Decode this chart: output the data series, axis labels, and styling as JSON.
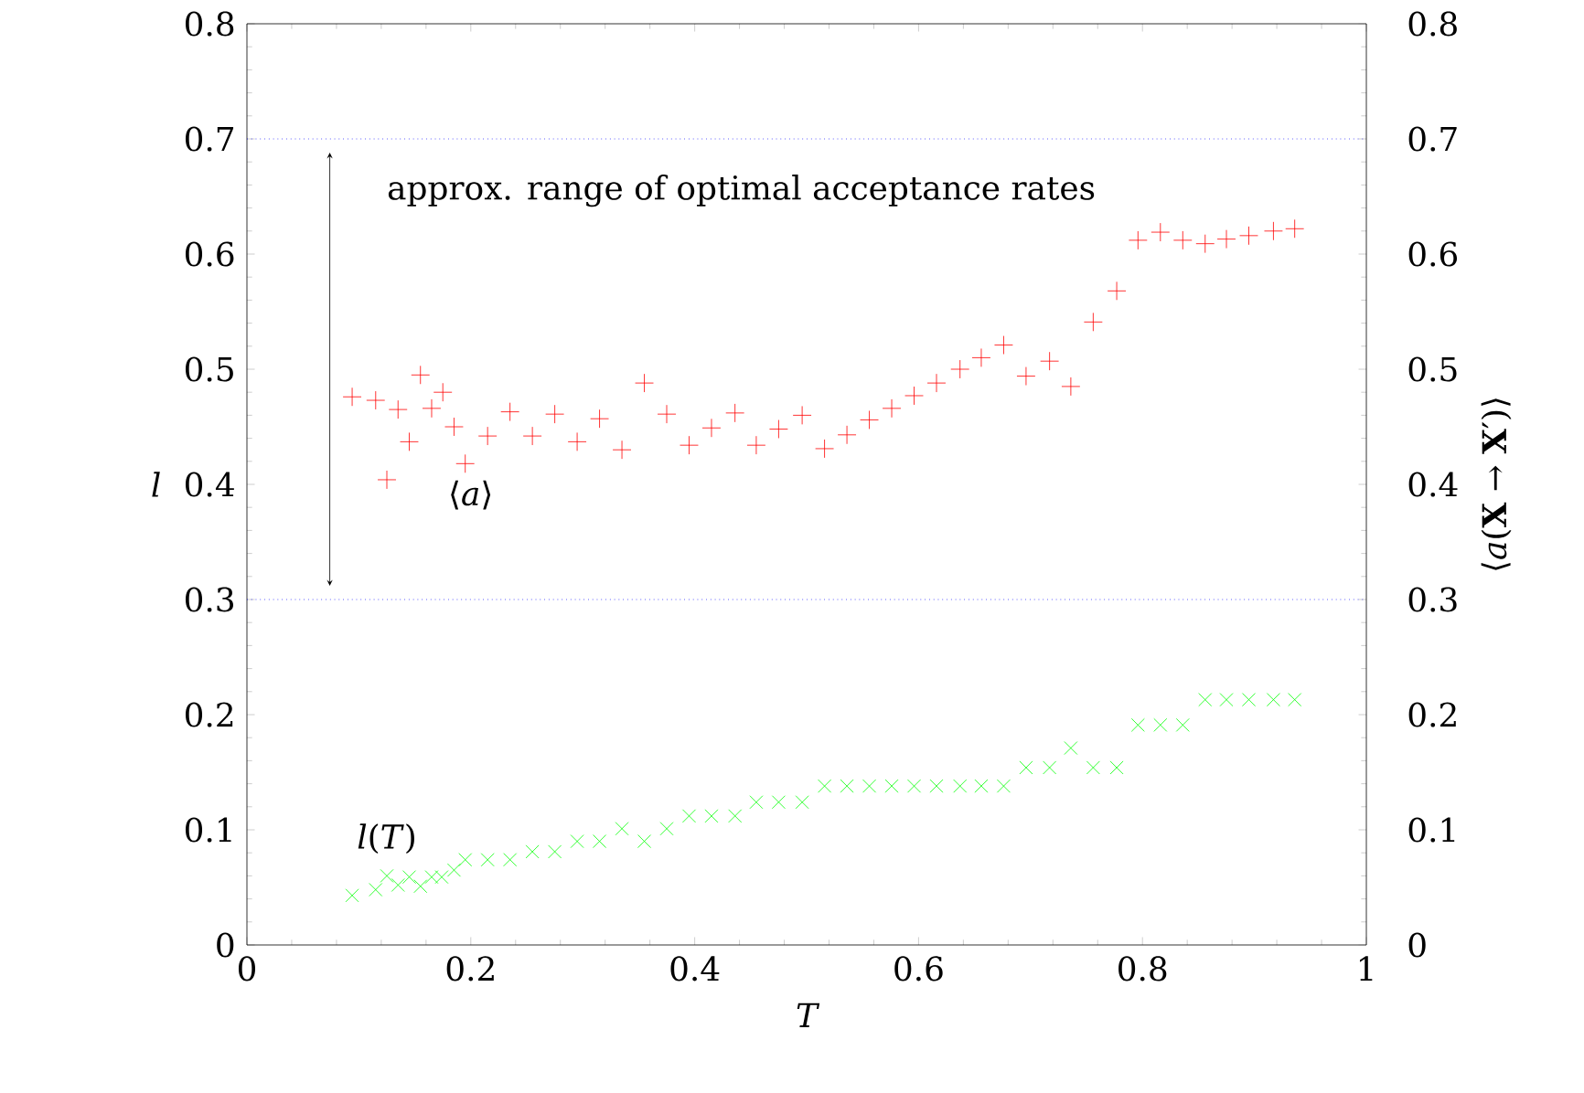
{
  "chart_data": {
    "type": "scatter",
    "xlabel": "T",
    "ylabel": "l",
    "y2label": "⟨*a*(**X** → **X**′)⟩",
    "xlim": [
      0,
      1
    ],
    "xticks": [
      0,
      0.2,
      0.4,
      0.6,
      0.8,
      1
    ],
    "ylim": [
      0,
      0.8
    ],
    "yticks": [
      0,
      0.1,
      0.2,
      0.3,
      0.4,
      0.5,
      0.6,
      0.7,
      0.8
    ],
    "y2lim": [
      0,
      0.8
    ],
    "y2ticks": [
      0,
      0.1,
      0.2,
      0.3,
      0.4,
      0.5,
      0.6,
      0.7,
      0.8
    ],
    "grid": false,
    "ref_lines": [
      {
        "axis": "y",
        "value": 0.7,
        "color": "#0000ff",
        "line_style": "dotted"
      },
      {
        "axis": "y",
        "value": 0.3,
        "color": "#0000ff",
        "line_style": "dotted"
      }
    ],
    "annotations": [
      "approx. range of optimal acceptance rates"
    ],
    "series": [
      {
        "name": "⟨*a*⟩",
        "color": "#ff0000",
        "marker": "plus",
        "axis": "y2",
        "x": [
          0.094,
          0.115,
          0.125,
          0.135,
          0.145,
          0.155,
          0.165,
          0.175,
          0.185,
          0.195,
          0.215,
          0.235,
          0.255,
          0.275,
          0.295,
          0.315,
          0.335,
          0.355,
          0.375,
          0.395,
          0.415,
          0.436,
          0.455,
          0.475,
          0.496,
          0.516,
          0.536,
          0.556,
          0.576,
          0.596,
          0.616,
          0.637,
          0.656,
          0.676,
          0.696,
          0.717,
          0.736,
          0.756,
          0.777,
          0.796,
          0.816,
          0.836,
          0.856,
          0.875,
          0.895,
          0.917,
          0.936
        ],
        "values": [
          0.476,
          0.473,
          0.404,
          0.465,
          0.437,
          0.495,
          0.466,
          0.48,
          0.45,
          0.418,
          0.442,
          0.463,
          0.442,
          0.461,
          0.437,
          0.457,
          0.43,
          0.488,
          0.461,
          0.434,
          0.449,
          0.462,
          0.434,
          0.448,
          0.46,
          0.431,
          0.443,
          0.456,
          0.466,
          0.477,
          0.488,
          0.5,
          0.51,
          0.521,
          0.494,
          0.507,
          0.485,
          0.541,
          0.568,
          0.612,
          0.619,
          0.612,
          0.609,
          0.613,
          0.616,
          0.62,
          0.622
        ]
      },
      {
        "name": "*l*(*T*)",
        "color": "#00ff00",
        "marker": "cross",
        "x": [
          0.094,
          0.115,
          0.125,
          0.135,
          0.145,
          0.155,
          0.165,
          0.174,
          0.185,
          0.195,
          0.215,
          0.235,
          0.255,
          0.275,
          0.295,
          0.315,
          0.335,
          0.355,
          0.375,
          0.395,
          0.415,
          0.436,
          0.455,
          0.475,
          0.496,
          0.516,
          0.536,
          0.556,
          0.576,
          0.596,
          0.616,
          0.637,
          0.656,
          0.676,
          0.696,
          0.717,
          0.736,
          0.756,
          0.777,
          0.796,
          0.816,
          0.836,
          0.856,
          0.875,
          0.895,
          0.917,
          0.936
        ],
        "values": [
          0.043,
          0.048,
          0.06,
          0.052,
          0.059,
          0.051,
          0.059,
          0.059,
          0.065,
          0.074,
          0.074,
          0.074,
          0.081,
          0.081,
          0.09,
          0.09,
          0.101,
          0.09,
          0.101,
          0.112,
          0.112,
          0.112,
          0.124,
          0.124,
          0.124,
          0.138,
          0.138,
          0.138,
          0.138,
          0.138,
          0.138,
          0.138,
          0.138,
          0.138,
          0.154,
          0.154,
          0.171,
          0.154,
          0.154,
          0.191,
          0.191,
          0.191,
          0.213,
          0.213,
          0.213,
          0.213,
          0.213
        ]
      }
    ]
  }
}
